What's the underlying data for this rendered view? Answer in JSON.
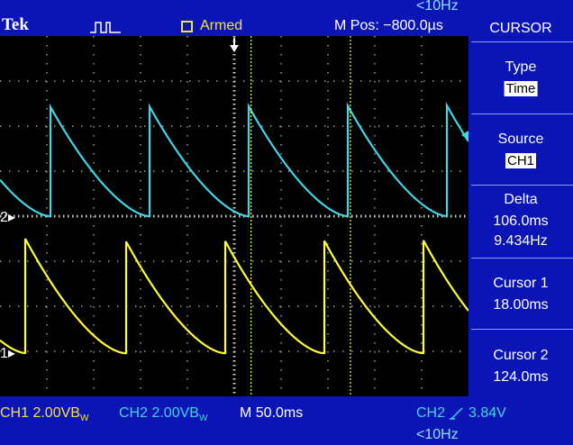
{
  "header": {
    "brand": "Tek",
    "trigger_icon": "pulse-trigger-icon",
    "status_checkbox_icon": "square-checkbox-icon",
    "status": "Armed",
    "m_pos": "M Pos: −800.0µs",
    "freq_top": "<10Hz"
  },
  "menu": {
    "title": "CURSOR",
    "type_label": "Type",
    "type_value": "Time",
    "source_label": "Source",
    "source_value": "CH1",
    "delta_label": "Delta",
    "delta_time": "106.0ms",
    "delta_freq": "9.434Hz",
    "cursor1_label": "Cursor 1",
    "cursor1_value": "18.00ms",
    "cursor2_label": "Cursor 2",
    "cursor2_value": "124.0ms"
  },
  "footer": {
    "ch1": "CH1  2.00VB",
    "ch1_sub": "W",
    "ch2": "CH2  2.00VB",
    "ch2_sub": "W",
    "timebase": "M 50.0ms",
    "trigger": "CH2",
    "trigger_slope_icon": "rising-edge-icon",
    "trigger_level": "3.84V",
    "freq_bottom": "<10Hz"
  },
  "markers": {
    "ch2_marker": "2",
    "ch1_marker": "1"
  },
  "colors": {
    "ch1": "#ffff33",
    "ch2": "#3fd6e6",
    "cursor": "#ffff33",
    "background": "#0b14b4",
    "screen": "#000000"
  },
  "chart_data": {
    "type": "line",
    "time_per_div_ms": 50,
    "volts_per_div": 2,
    "divisions": {
      "x": 10,
      "y": 8
    },
    "cursor1_ms": 18,
    "cursor2_ms": 124,
    "series": [
      {
        "name": "CH1",
        "period_ms": 106,
        "shape": "sawtooth-decay"
      },
      {
        "name": "CH2",
        "period_ms": 106,
        "shape": "sawtooth-decay"
      }
    ]
  }
}
